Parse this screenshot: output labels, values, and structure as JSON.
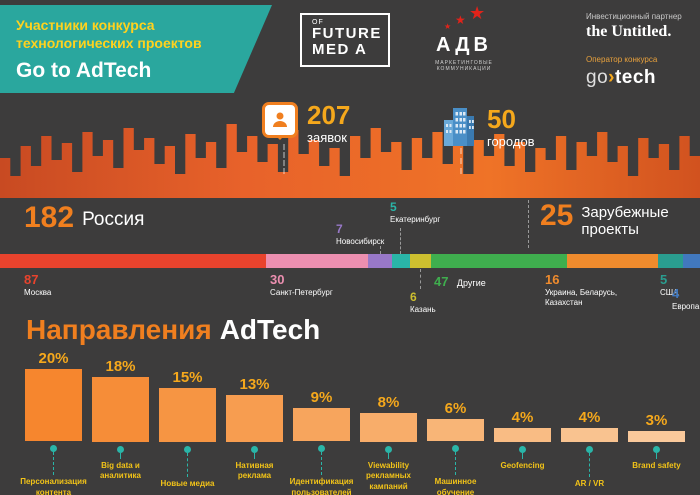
{
  "colors": {
    "background": "#3d3c3c",
    "teal": "#2aa79e",
    "yellow": "#ffd21e",
    "orange": "#f07f1f",
    "amber": "#f5a81c",
    "label_yellow": "#f2c318"
  },
  "header": {
    "banner": {
      "subtitle": "Участники конкурса технологических проектов",
      "title": "Go to AdTech"
    },
    "future_media_logo": {
      "of": "OF",
      "line1": "FUTURE",
      "line2": "MED A"
    },
    "adv_logo": {
      "name": "АДВ",
      "tagline": "МАРКЕТИНГОВЫЕ КОММУНИКАЦИИ"
    },
    "investment_partner": {
      "label": "Инвестиционный партнер",
      "name": "the Untitled."
    },
    "operator": {
      "label": "Оператор конкурса",
      "go": "go",
      "arrow": "›",
      "tech": "tech"
    }
  },
  "stats": {
    "applications": {
      "value": "207",
      "label": "заявок"
    },
    "cities": {
      "value": "50",
      "label": "городов"
    }
  },
  "regions": {
    "russia": {
      "value": "182",
      "label": "Россия"
    },
    "foreign": {
      "value": "25",
      "label": "Зарубежные проекты"
    }
  },
  "section_title": {
    "part1": "Направления",
    "part2": "AdTech"
  },
  "chart_data": [
    {
      "type": "bar",
      "subtype": "horizontal-stacked",
      "segments": [
        {
          "label": "Москва",
          "value": 87,
          "color": "#e8432d"
        },
        {
          "label": "Санкт-Петербург",
          "value": 30,
          "color": "#ec8fb0"
        },
        {
          "label": "Новосибирск",
          "value": 7,
          "color": "#9878c8"
        },
        {
          "label": "Екатеринбург",
          "value": 5,
          "color": "#2ab5a8"
        },
        {
          "label": "Казань",
          "value": 6,
          "color": "#cdbf2f"
        },
        {
          "label": "Другие",
          "value": 47,
          "color": "#3fae4e"
        },
        {
          "label": "Украина, Беларусь, Казахстан",
          "value": 16,
          "color": "#ef8b2d"
        },
        {
          "label": "США",
          "value": 5,
          "color": "#2a9d8f"
        },
        {
          "label": "Европа",
          "value": 4,
          "color": "#4178be"
        }
      ]
    },
    {
      "type": "bar",
      "title": "Направления AdTech",
      "unit": "%",
      "ylim": [
        0,
        20
      ],
      "categories": [
        "Персонализация контента",
        "Big data и аналитика",
        "Новые медиа",
        "Нативная реклама",
        "Идентификация пользователей",
        "Viewability рекламных кампаний",
        "Машинное обучение",
        "Geofencing",
        "AR / VR",
        "Brand safety"
      ],
      "values": [
        20,
        18,
        15,
        13,
        9,
        8,
        6,
        4,
        4,
        3
      ],
      "bar_colors": [
        "#f6862e",
        "#f68d38",
        "#f69543",
        "#f79d50",
        "#f7a55d",
        "#f8ad6a",
        "#f8b577",
        "#f9bc84",
        "#f9c390",
        "#fac99b"
      ]
    }
  ]
}
